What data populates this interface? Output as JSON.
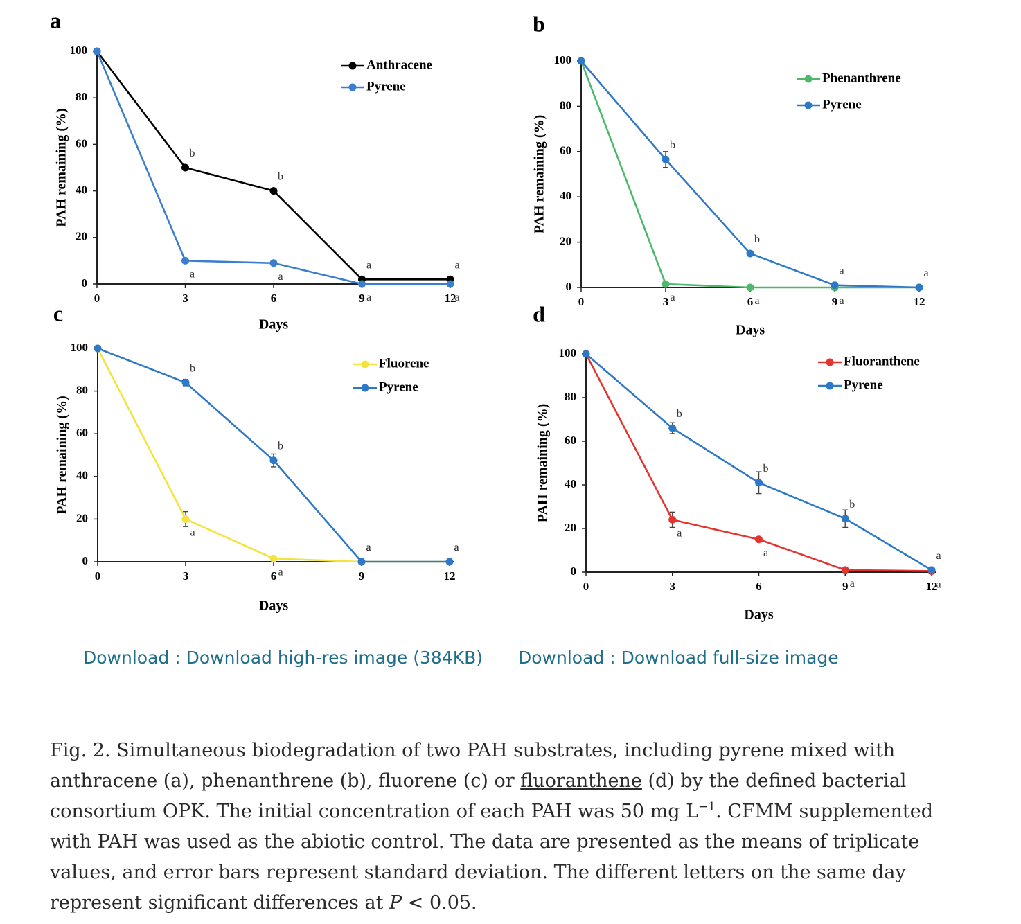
{
  "download_links": [
    {
      "prefix": "Download",
      "sep": " : ",
      "label": "Download high-res image (384KB)"
    },
    {
      "prefix": "Download",
      "sep": " : ",
      "label": "Download full-size image"
    }
  ],
  "caption": {
    "p1": "Fig. 2. Simultaneous biodegradation of two PAH substrates, including pyrene mixed with anthracene (a), phenanthrene (b), fluorene (c) or ",
    "link": "fluoranthene",
    "p2": " (d) by the defined bacterial consortium OPK. The initial concentration of each PAH was 50 mg L",
    "sup": "−1",
    "p3": ". CFMM supplemented with PAH was used as the abiotic control. The data are presented as the means of triplicate values, and error bars represent standard deviation. The different letters on the same day represent significant differences at ",
    "italic": "P",
    "p4": " < 0.05."
  },
  "chart_data": [
    {
      "panel": "a",
      "type": "line",
      "x": [
        0,
        3,
        6,
        9,
        12
      ],
      "xlabel": "Days",
      "ylabel": "PAH remaining (%)",
      "ylim": [
        0,
        100
      ],
      "yticks": [
        0,
        20,
        40,
        60,
        80,
        100
      ],
      "legend_position": "top-right",
      "grid": false,
      "series": [
        {
          "name": "Anthracene",
          "color": "#000000",
          "values": [
            100,
            50,
            40,
            2,
            2
          ],
          "letters": [
            "",
            "b",
            "b",
            "a",
            "a"
          ],
          "errors": [
            0,
            0,
            0,
            0,
            0
          ]
        },
        {
          "name": "Pyrene",
          "color": "#3b7fcc",
          "values": [
            100,
            10,
            9,
            0,
            0
          ],
          "letters": [
            "",
            "a",
            "a",
            "a",
            "a"
          ],
          "errors": [
            0,
            0,
            0,
            0,
            0
          ]
        }
      ]
    },
    {
      "panel": "b",
      "type": "line",
      "x": [
        0,
        3,
        6,
        9,
        12
      ],
      "xlabel": "Days",
      "ylabel": "PAH remaining (%)",
      "ylim": [
        0,
        100
      ],
      "yticks": [
        0,
        20,
        40,
        60,
        80,
        100
      ],
      "legend_position": "top-right",
      "grid": false,
      "series": [
        {
          "name": "Phenanthrene",
          "color": "#4cb86a",
          "values": [
            100,
            1.5,
            0,
            0,
            0
          ],
          "letters": [
            "",
            "a",
            "a",
            "a",
            "a"
          ],
          "errors": [
            0,
            0,
            0,
            0,
            0
          ]
        },
        {
          "name": "Pyrene",
          "color": "#2e78c8",
          "values": [
            100,
            56.5,
            15,
            1,
            0
          ],
          "letters": [
            "",
            "b",
            "b",
            "a",
            "a"
          ],
          "errors": [
            0,
            3.5,
            0,
            0,
            0
          ]
        }
      ]
    },
    {
      "panel": "c",
      "type": "line",
      "x": [
        0,
        3,
        6,
        9,
        12
      ],
      "xlabel": "Days",
      "ylabel": "PAH remaining (%)",
      "ylim": [
        0,
        100
      ],
      "yticks": [
        0,
        20,
        40,
        60,
        80,
        100
      ],
      "legend_position": "top-right",
      "grid": false,
      "series": [
        {
          "name": "Fluorene",
          "color": "#f2e43a",
          "values": [
            100,
            20,
            1.5,
            0,
            0
          ],
          "letters": [
            "",
            "a",
            "a",
            "a",
            "a"
          ],
          "errors": [
            0,
            3.5,
            0,
            0,
            0
          ]
        },
        {
          "name": "Pyrene",
          "color": "#2e78c8",
          "values": [
            100,
            84,
            47.5,
            0,
            0
          ],
          "letters": [
            "",
            "b",
            "b",
            "a",
            "a"
          ],
          "errors": [
            0,
            1.5,
            3,
            0,
            0
          ]
        }
      ]
    },
    {
      "panel": "d",
      "type": "line",
      "x": [
        0,
        3,
        6,
        9,
        12
      ],
      "xlabel": "Days",
      "ylabel": "PAH remaining (%)",
      "ylim": [
        0,
        100
      ],
      "yticks": [
        0,
        20,
        40,
        60,
        80,
        100
      ],
      "legend_position": "top-right",
      "grid": false,
      "series": [
        {
          "name": "Fluoranthene",
          "color": "#e2352f",
          "values": [
            100,
            24,
            15,
            1,
            0.5
          ],
          "letters": [
            "",
            "a",
            "a",
            "a",
            "a"
          ],
          "errors": [
            0,
            3.5,
            0,
            0,
            0
          ]
        },
        {
          "name": "Pyrene",
          "color": "#2e78c8",
          "values": [
            100,
            66,
            41,
            24.5,
            1
          ],
          "letters": [
            "",
            "b",
            "b",
            "b",
            "a"
          ],
          "errors": [
            0,
            2.5,
            5,
            4,
            0
          ]
        }
      ]
    }
  ]
}
